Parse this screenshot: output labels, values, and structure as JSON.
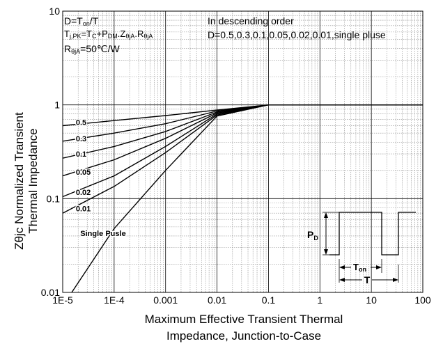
{
  "chart_data": {
    "type": "line",
    "title": "",
    "xlabel_lines": [
      "Maximum Effective Transient Thermal",
      "Impedance, Junction-to-Case"
    ],
    "ylabel_lines": [
      "Zθjc Normalized Transient",
      "Thermal Impedance"
    ],
    "x_scale": "log",
    "y_scale": "log",
    "xlim": [
      1e-05,
      100
    ],
    "ylim": [
      0.01,
      10
    ],
    "x_tick_labels": [
      "1E-5",
      "1E-4",
      "0.001",
      "0.01",
      "0.1",
      "1",
      "10",
      "100"
    ],
    "y_tick_labels": [
      "0.01",
      "0.1",
      "1",
      "10"
    ],
    "grid": true,
    "annotations": {
      "d_def": [
        "D=T",
        "on",
        "/T"
      ],
      "tj": [
        "T",
        "j,PK",
        "=T",
        "C",
        "+P",
        "DM",
        ".Z",
        "θjA",
        ".R",
        "θjA"
      ],
      "rth": [
        "R",
        "θjA",
        "=50℃/W"
      ],
      "order_title": "In descending order",
      "order_list": "D=0.5,0.3,0.1,0.05,0.02,0.01,single pluse"
    },
    "pulse_inset": {
      "pd_label": [
        "P",
        "D"
      ],
      "ton_label": [
        "T",
        "on"
      ],
      "t_label": "T"
    },
    "series": [
      {
        "name": "0.5",
        "x": [
          1e-05,
          0.0001,
          0.001,
          0.01,
          0.1,
          100
        ],
        "y": [
          0.6,
          0.68,
          0.77,
          0.88,
          1.0,
          1.0
        ]
      },
      {
        "name": "0.3",
        "x": [
          1e-05,
          0.0001,
          0.001,
          0.01,
          0.1,
          100
        ],
        "y": [
          0.41,
          0.5,
          0.63,
          0.86,
          1.0,
          1.0
        ]
      },
      {
        "name": "0.1",
        "x": [
          1e-05,
          0.0001,
          0.001,
          0.01,
          0.1,
          100
        ],
        "y": [
          0.27,
          0.36,
          0.52,
          0.84,
          1.0,
          1.0
        ]
      },
      {
        "name": "0.05",
        "x": [
          1e-05,
          0.0001,
          0.001,
          0.01,
          0.1,
          100
        ],
        "y": [
          0.175,
          0.26,
          0.44,
          0.82,
          1.0,
          1.0
        ]
      },
      {
        "name": "0.02",
        "x": [
          1e-05,
          0.0001,
          0.001,
          0.01,
          0.1,
          100
        ],
        "y": [
          0.105,
          0.175,
          0.36,
          0.8,
          1.0,
          1.0
        ]
      },
      {
        "name": "0.01",
        "x": [
          1e-05,
          0.0001,
          0.001,
          0.01,
          0.1,
          100
        ],
        "y": [
          0.07,
          0.135,
          0.31,
          0.78,
          1.0,
          1.0
        ]
      },
      {
        "name": "Single Pusle",
        "x": [
          1.5e-05,
          0.0001,
          0.001,
          0.01,
          0.1,
          100
        ],
        "y": [
          0.01,
          0.048,
          0.2,
          0.76,
          1.0,
          1.0
        ]
      }
    ]
  }
}
